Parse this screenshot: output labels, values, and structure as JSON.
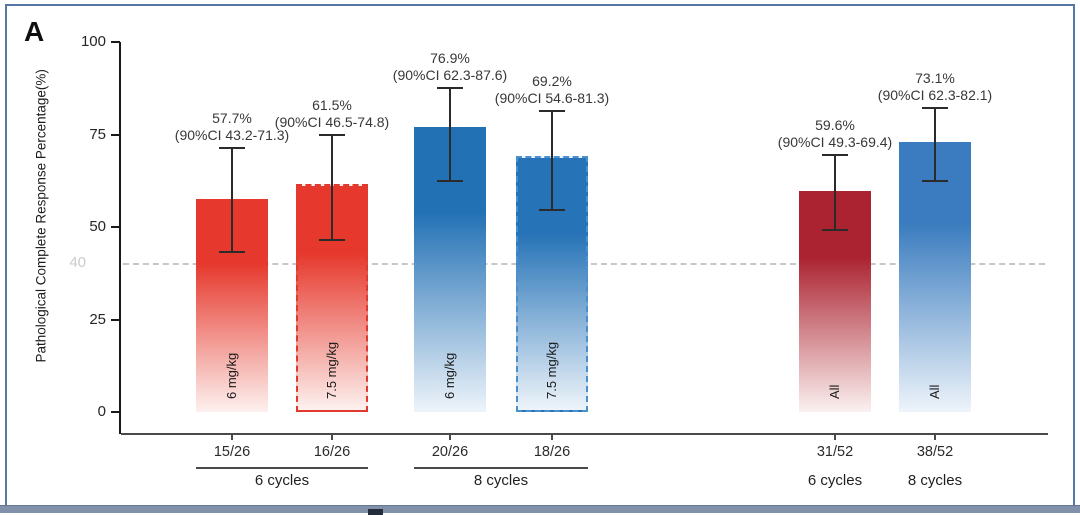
{
  "panel_label": "A",
  "chart_data": {
    "type": "bar",
    "title": "",
    "ylabel": "Pathological Complete Response Percentage(%)",
    "xlabel": "",
    "ylim": [
      0,
      100
    ],
    "yticks": [
      "0",
      "25",
      "50",
      "75",
      "100"
    ],
    "ytick_values": [
      0,
      25,
      50,
      75,
      100
    ],
    "grid": "off",
    "legend": "none",
    "reference_line": {
      "value": 40,
      "label": "40",
      "style": "dashed",
      "color": "#c7c7c7"
    },
    "bars": [
      {
        "dose_label": "6 mg/kg",
        "cycles_group": "6 cycles",
        "value": 57.7,
        "ci_low": 43.2,
        "ci_high": 71.3,
        "pct_text": "57.7%",
        "ci_text": "(90%CI 43.2-71.3)",
        "fraction": "15/26",
        "top_color": "#e6382c",
        "fade_color": "#fdf1ef",
        "border_style": "solid",
        "border_color": "#e6382c"
      },
      {
        "dose_label": "7.5 mg/kg",
        "cycles_group": "6 cycles",
        "value": 61.5,
        "ci_low": 46.5,
        "ci_high": 74.8,
        "pct_text": "61.5%",
        "ci_text": "(90%CI 46.5-74.8)",
        "fraction": "16/26",
        "top_color": "#e6382c",
        "fade_color": "#fdf1ef",
        "border_style": "dashed",
        "border_color": "#e0392e"
      },
      {
        "dose_label": "6 mg/kg",
        "cycles_group": "8 cycles",
        "value": 76.9,
        "ci_low": 62.3,
        "ci_high": 87.6,
        "pct_text": "76.9%",
        "ci_text": "(90%CI 62.3-87.6)",
        "fraction": "20/26",
        "top_color": "#2371b5",
        "fade_color": "#eef4fa",
        "border_style": "solid",
        "border_color": "#2371b5"
      },
      {
        "dose_label": "7.5 mg/kg",
        "cycles_group": "8 cycles",
        "value": 69.2,
        "ci_low": 54.6,
        "ci_high": 81.3,
        "pct_text": "69.2%",
        "ci_text": "(90%CI 54.6-81.3)",
        "fraction": "18/26",
        "top_color": "#2673b7",
        "fade_color": "#eef4fa",
        "border_style": "dashed",
        "border_color": "#4a90cf"
      },
      {
        "dose_label": "All",
        "cycles_group": "6 cycles",
        "value": 59.6,
        "ci_low": 49.3,
        "ci_high": 69.4,
        "pct_text": "59.6%",
        "ci_text": "(90%CI 49.3-69.4)",
        "fraction": "31/52",
        "top_color": "#ab2331",
        "fade_color": "#fbf1f0",
        "border_style": "solid",
        "border_color": "#ab2331"
      },
      {
        "dose_label": "All",
        "cycles_group": "8 cycles",
        "value": 73.1,
        "ci_low": 62.3,
        "ci_high": 82.1,
        "pct_text": "73.1%",
        "ci_text": "(90%CI 62.3-82.1)",
        "fraction": "38/52",
        "top_color": "#3a7cbf",
        "fade_color": "#eef4fa",
        "border_style": "solid",
        "border_color": "#3a7cbf"
      }
    ],
    "x_groups": [
      {
        "label": "6 cycles",
        "bar_indexes": [
          0,
          1
        ],
        "underline": true
      },
      {
        "label": "8 cycles",
        "bar_indexes": [
          2,
          3
        ],
        "underline": true
      },
      {
        "label": "6 cycles",
        "bar_indexes": [
          4
        ],
        "underline": false
      },
      {
        "label": "8 cycles",
        "bar_indexes": [
          5
        ],
        "underline": false
      }
    ]
  }
}
